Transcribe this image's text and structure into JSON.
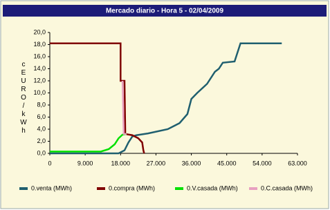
{
  "chart_data": {
    "type": "line",
    "title": "Mercado diario - Hora 5 - 02/04/2009",
    "y_label": "cEURO/kWh",
    "xlim": [
      0,
      63000
    ],
    "ylim": [
      0,
      20
    ],
    "xticks": [
      0,
      {
        "value": 9000,
        "label": "9.000"
      },
      {
        "value": 18000,
        "label": "18.000"
      },
      {
        "value": 27000,
        "label": "27.000"
      },
      {
        "value": 36000,
        "label": "36.000"
      },
      {
        "value": 45000,
        "label": "45.000"
      },
      {
        "value": 54000,
        "label": "54.000"
      },
      {
        "value": 63000,
        "label": "63.000"
      }
    ],
    "yticks": [
      {
        "value": 0,
        "label": "0,0"
      },
      {
        "value": 2,
        "label": "2,0"
      },
      {
        "value": 4,
        "label": "4,0"
      },
      {
        "value": 6,
        "label": "6,0"
      },
      {
        "value": 8,
        "label": "8,0"
      },
      {
        "value": 10,
        "label": "10,0"
      },
      {
        "value": 12,
        "label": "12,0"
      },
      {
        "value": 14,
        "label": "14,0"
      },
      {
        "value": 16,
        "label": "16,0"
      },
      {
        "value": 18,
        "label": "18,0"
      },
      {
        "value": 20,
        "label": "20,0"
      }
    ],
    "grid": false,
    "series": [
      {
        "name": "0.venta (MWh)",
        "color": "#1f5f6f",
        "x": [
          0,
          17500,
          19000,
          20000,
          21000,
          22000,
          25000,
          30000,
          33000,
          35000,
          36000,
          37500,
          40000,
          42000,
          43000,
          44000,
          47000,
          48500,
          59000
        ],
        "values": [
          0,
          0,
          0.5,
          1.8,
          2.8,
          3.0,
          3.3,
          4.0,
          5.0,
          6.5,
          9.0,
          10.0,
          11.5,
          13.5,
          14.0,
          15.0,
          15.2,
          18.2,
          18.2
        ]
      },
      {
        "name": "0.compra (MWh)",
        "color": "#800000",
        "x": [
          0,
          18000,
          18000,
          19000,
          19200,
          21000,
          22500,
          23500,
          23800,
          24000
        ],
        "values": [
          18.2,
          18.2,
          12.0,
          12.0,
          3.2,
          3.0,
          2.5,
          1.8,
          0.5,
          0
        ]
      },
      {
        "name": "0.V.casada (MWh)",
        "color": "#00e000",
        "x": [
          0,
          13000,
          15000,
          16500,
          17500,
          18500,
          19500
        ],
        "values": [
          0.3,
          0.3,
          0.7,
          1.5,
          2.5,
          3.1,
          3.2
        ]
      },
      {
        "name": "0.C.casada (MWh)",
        "color": "#e8a0c0",
        "x": [
          18500,
          18800,
          19500
        ],
        "values": [
          12.0,
          3.2,
          3.2
        ]
      }
    ]
  }
}
